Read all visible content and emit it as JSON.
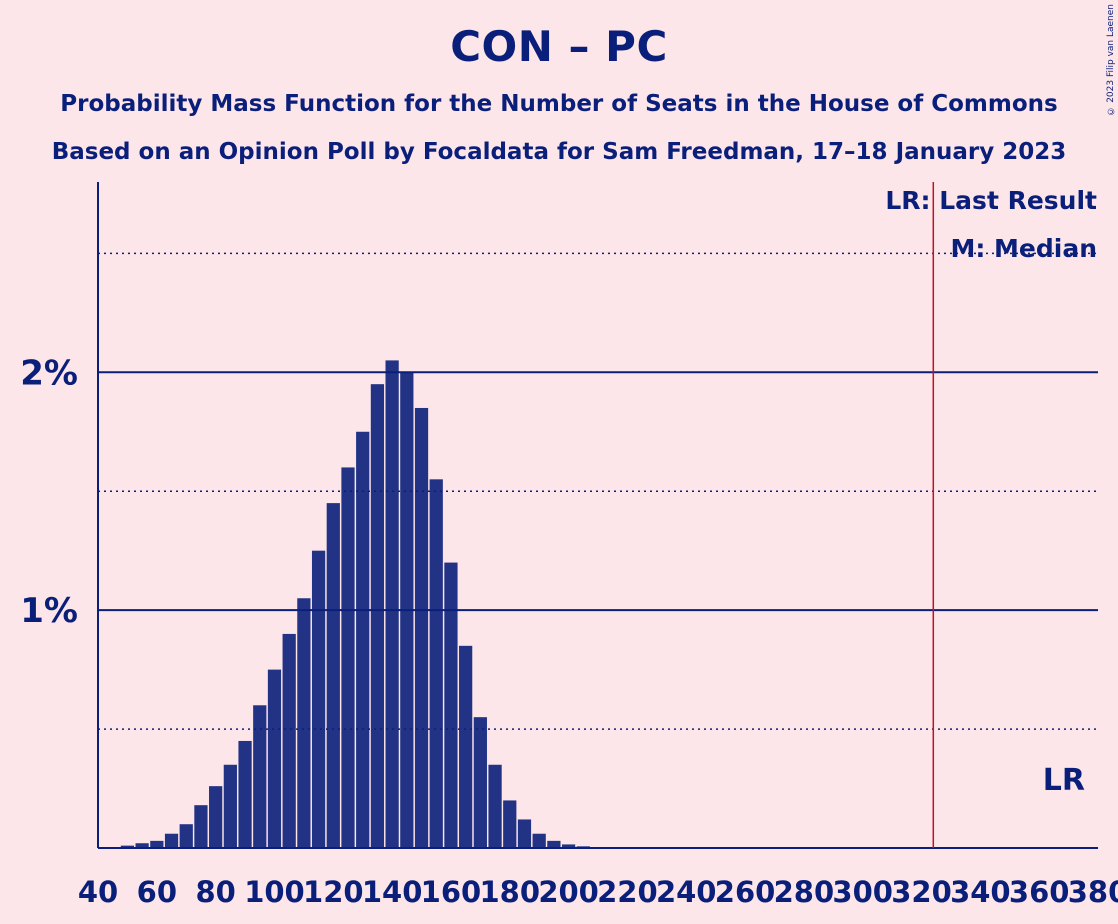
{
  "header": {
    "title": "CON – PC",
    "subtitle_1": "Probability Mass Function for the Number of Seats in the House of Commons",
    "subtitle_2": "Based on an Opinion Poll by Focaldata for Sam Freedman, 17–18 January 2023",
    "copyright": "© 2023 Filip van Laenen"
  },
  "legend": {
    "last_result": "LR: Last Result",
    "median": "M: Median",
    "lr_marker": "LR"
  },
  "colors": {
    "background": "#fde6ea",
    "text": "#0a1f7a",
    "bars": "#0a1f7a",
    "last_result_line": "#c1121f"
  },
  "chart_data": {
    "type": "bar",
    "x_ticks": [
      40,
      60,
      80,
      100,
      120,
      140,
      160,
      180,
      200,
      220,
      240,
      260,
      280,
      300,
      320,
      340,
      360,
      380
    ],
    "y_ticks": [
      {
        "value": 1,
        "label": "1%"
      },
      {
        "value": 2,
        "label": "2%"
      }
    ],
    "y_minor_gridlines": [
      0.5,
      1.5,
      2.5
    ],
    "xlim": [
      40,
      380
    ],
    "ylim": [
      0,
      2.8
    ],
    "last_result": 324,
    "series": [
      {
        "x": [
          50,
          55,
          60,
          65,
          70,
          75,
          80,
          85,
          90,
          95,
          100,
          105,
          110,
          115,
          120,
          125,
          130,
          135,
          140,
          145,
          150,
          155,
          160,
          165,
          170,
          175,
          180,
          185,
          190,
          195,
          200,
          205,
          210
        ],
        "values": [
          0.01,
          0.02,
          0.03,
          0.06,
          0.1,
          0.18,
          0.26,
          0.35,
          0.45,
          0.6,
          0.75,
          0.9,
          1.05,
          1.25,
          1.45,
          1.6,
          1.75,
          1.95,
          2.05,
          2.0,
          1.85,
          1.55,
          1.2,
          0.85,
          0.55,
          0.35,
          0.2,
          0.12,
          0.06,
          0.03,
          0.015,
          0.007,
          0.003
        ]
      }
    ]
  }
}
